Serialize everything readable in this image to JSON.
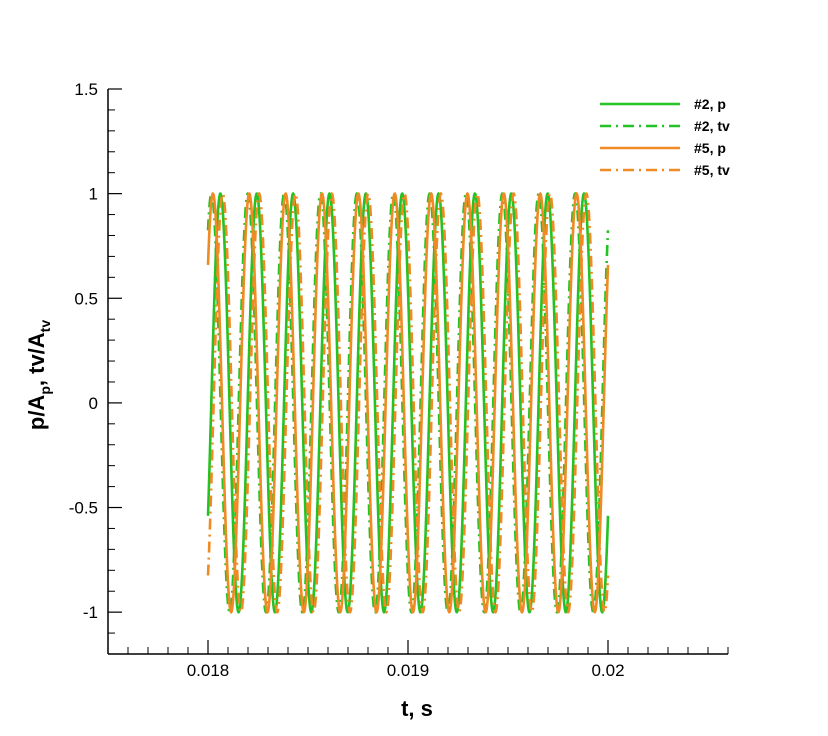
{
  "chart_data": {
    "type": "line",
    "xlabel": "t, s",
    "ylabel": {
      "main": "p/A",
      "sub1": "p",
      "mid": ", tv/A",
      "sub2": "tv"
    },
    "xlim": [
      0.0175,
      0.0206
    ],
    "ylim": [
      -1.2,
      1.5
    ],
    "x_ticks": [
      0.018,
      0.019,
      0.02
    ],
    "x_tick_labels": [
      "0.018",
      "0.019",
      "0.02"
    ],
    "y_ticks": [
      -1,
      -0.5,
      0,
      0.5,
      1,
      1.5
    ],
    "y_tick_labels": [
      "-1",
      "-0.5",
      "0",
      "0.5",
      "1",
      "1.5"
    ],
    "grid": false,
    "legend_position": "top-right",
    "sample_x_range": [
      0.018,
      0.02
    ],
    "frequency_hz": 5500,
    "series": [
      {
        "name": "#2, p",
        "color": "#22c322",
        "dash": "solid",
        "phase_rad": -0.57,
        "start_value": -0.54,
        "end_value": -0.54
      },
      {
        "name": "#2, tv",
        "color": "#22c322",
        "dash": "dashdot",
        "phase_rad": 0.97,
        "start_value": 0.82,
        "end_value": 0.82
      },
      {
        "name": "#5, p",
        "color": "#f08a24",
        "dash": "solid",
        "phase_rad": 0.72,
        "start_value": 0.66,
        "end_value": 0.66
      },
      {
        "name": "#5, tv",
        "color": "#f08a24",
        "dash": "dashdot",
        "phase_rad": -0.97,
        "start_value": -0.82,
        "end_value": -0.82
      }
    ]
  }
}
